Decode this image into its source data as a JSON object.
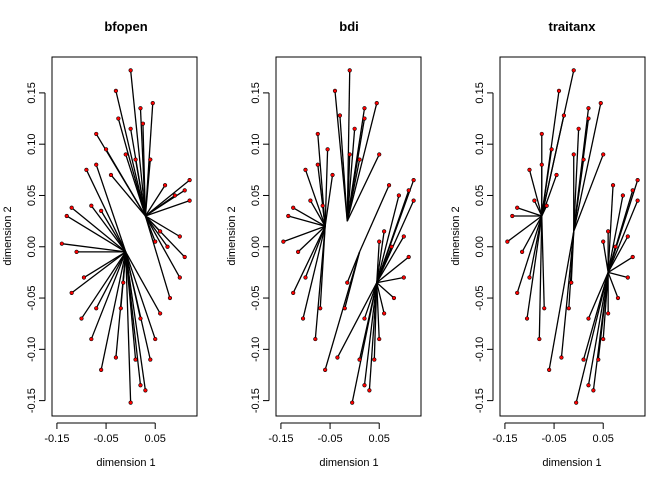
{
  "chart_data": [
    {
      "type": "scatter",
      "title": "bfopen",
      "xlabel": "dimension 1",
      "ylabel": "dimension 2",
      "xlim": [
        -0.16,
        0.135
      ],
      "ylim": [
        -0.165,
        0.185
      ],
      "xticks": [
        -0.15,
        -0.05,
        0.05
      ],
      "xtick_labels": [
        "-0.15",
        "-0.05",
        "0.05"
      ],
      "yticks": [
        -0.15,
        -0.1,
        -0.05,
        0.0,
        0.05,
        0.1,
        0.15
      ],
      "ytick_labels": [
        "-0.15",
        "-0.10",
        "-0.05",
        "0.00",
        "0.05",
        "0.10",
        "0.15"
      ],
      "point_color": "#ff0000",
      "line_color": "#000000",
      "hubs": [
        [
          -0.01,
          -0.005
        ],
        [
          0.03,
          0.03
        ]
      ],
      "points": [
        [
          0.0,
          0.172
        ],
        [
          -0.03,
          0.152
        ],
        [
          -0.025,
          0.125
        ],
        [
          0.025,
          0.12
        ],
        [
          0.04,
          0.085
        ],
        [
          -0.07,
          0.11
        ],
        [
          -0.07,
          0.08
        ],
        [
          -0.09,
          0.075
        ],
        [
          -0.06,
          0.035
        ],
        [
          -0.08,
          0.04
        ],
        [
          -0.12,
          0.038
        ],
        [
          -0.13,
          0.03
        ],
        [
          -0.14,
          0.003
        ],
        [
          -0.11,
          -0.005
        ],
        [
          -0.095,
          -0.03
        ],
        [
          -0.12,
          -0.045
        ],
        [
          -0.1,
          -0.07
        ],
        [
          -0.08,
          -0.09
        ],
        [
          -0.06,
          -0.12
        ],
        [
          -0.03,
          -0.108
        ],
        [
          0.0,
          -0.152
        ],
        [
          0.01,
          -0.11
        ],
        [
          0.02,
          -0.135
        ],
        [
          0.03,
          -0.14
        ],
        [
          0.05,
          -0.09
        ],
        [
          0.06,
          -0.065
        ],
        [
          0.08,
          -0.05
        ],
        [
          0.1,
          -0.03
        ],
        [
          0.11,
          -0.01
        ],
        [
          0.1,
          0.01
        ],
        [
          0.12,
          0.065
        ],
        [
          0.12,
          0.045
        ],
        [
          0.11,
          0.055
        ],
        [
          0.09,
          0.05
        ],
        [
          0.07,
          0.06
        ],
        [
          0.06,
          0.015
        ],
        [
          0.05,
          0.005
        ],
        [
          0.075,
          0.0
        ],
        [
          0.0,
          0.115
        ],
        [
          -0.01,
          0.09
        ],
        [
          0.02,
          0.135
        ],
        [
          0.045,
          0.14
        ],
        [
          0.01,
          0.085
        ],
        [
          -0.04,
          0.07
        ],
        [
          -0.05,
          0.095
        ],
        [
          -0.02,
          -0.06
        ],
        [
          0.02,
          -0.07
        ],
        [
          -0.07,
          -0.06
        ],
        [
          0.04,
          -0.11
        ],
        [
          -0.015,
          -0.035
        ]
      ]
    },
    {
      "type": "scatter",
      "title": "bdi",
      "xlabel": "dimension 1",
      "ylabel": "dimension 2",
      "xlim": [
        -0.16,
        0.135
      ],
      "ylim": [
        -0.165,
        0.185
      ],
      "xticks": [
        -0.15,
        -0.05,
        0.05
      ],
      "xtick_labels": [
        "-0.15",
        "-0.05",
        "0.05"
      ],
      "yticks": [
        -0.15,
        -0.1,
        -0.05,
        0.0,
        0.05,
        0.1,
        0.15
      ],
      "ytick_labels": [
        "-0.15",
        "-0.10",
        "-0.05",
        "0.00",
        "0.05",
        "0.10",
        "0.15"
      ],
      "point_color": "#ff0000",
      "line_color": "#000000",
      "hubs": [
        [
          -0.06,
          0.02
        ],
        [
          -0.015,
          0.025
        ],
        [
          0.01,
          -0.005
        ],
        [
          0.045,
          -0.035
        ]
      ],
      "points": [
        [
          -0.01,
          0.172
        ],
        [
          -0.04,
          0.152
        ],
        [
          -0.03,
          0.128
        ],
        [
          0.02,
          0.125
        ],
        [
          0.05,
          0.09
        ],
        [
          -0.075,
          0.11
        ],
        [
          -0.075,
          0.08
        ],
        [
          -0.1,
          0.075
        ],
        [
          -0.065,
          0.04
        ],
        [
          -0.09,
          0.045
        ],
        [
          -0.125,
          0.038
        ],
        [
          -0.135,
          0.03
        ],
        [
          -0.145,
          0.005
        ],
        [
          -0.115,
          -0.005
        ],
        [
          -0.1,
          -0.03
        ],
        [
          -0.125,
          -0.045
        ],
        [
          -0.105,
          -0.07
        ],
        [
          -0.08,
          -0.09
        ],
        [
          -0.06,
          -0.12
        ],
        [
          -0.035,
          -0.108
        ],
        [
          -0.005,
          -0.152
        ],
        [
          0.01,
          -0.11
        ],
        [
          0.02,
          -0.135
        ],
        [
          0.03,
          -0.14
        ],
        [
          0.05,
          -0.09
        ],
        [
          0.06,
          -0.065
        ],
        [
          0.08,
          -0.05
        ],
        [
          0.1,
          -0.03
        ],
        [
          0.11,
          -0.01
        ],
        [
          0.1,
          0.01
        ],
        [
          0.12,
          0.065
        ],
        [
          0.12,
          0.045
        ],
        [
          0.11,
          0.055
        ],
        [
          0.09,
          0.05
        ],
        [
          0.07,
          0.06
        ],
        [
          0.06,
          0.015
        ],
        [
          0.05,
          0.005
        ],
        [
          0.075,
          0.0
        ],
        [
          0.0,
          0.115
        ],
        [
          -0.01,
          0.09
        ],
        [
          0.02,
          0.135
        ],
        [
          0.045,
          0.14
        ],
        [
          0.01,
          0.085
        ],
        [
          -0.045,
          0.07
        ],
        [
          -0.055,
          0.095
        ],
        [
          -0.02,
          -0.06
        ],
        [
          0.02,
          -0.07
        ],
        [
          -0.07,
          -0.06
        ],
        [
          0.04,
          -0.11
        ],
        [
          -0.015,
          -0.035
        ]
      ]
    },
    {
      "type": "scatter",
      "title": "traitanx",
      "xlabel": "dimension 1",
      "ylabel": "dimension 2",
      "xlim": [
        -0.16,
        0.135
      ],
      "ylim": [
        -0.165,
        0.185
      ],
      "xticks": [
        -0.15,
        -0.05,
        0.05
      ],
      "xtick_labels": [
        "-0.15",
        "-0.05",
        "0.05"
      ],
      "yticks": [
        -0.15,
        -0.1,
        -0.05,
        0.0,
        0.05,
        0.1,
        0.15
      ],
      "ytick_labels": [
        "-0.15",
        "-0.10",
        "-0.05",
        "0.00",
        "0.05",
        "0.10",
        "0.15"
      ],
      "point_color": "#ff0000",
      "line_color": "#000000",
      "hubs": [
        [
          -0.075,
          0.03
        ],
        [
          -0.01,
          0.015
        ],
        [
          0.06,
          -0.025
        ]
      ],
      "points": [
        [
          -0.01,
          0.172
        ],
        [
          -0.04,
          0.152
        ],
        [
          -0.03,
          0.128
        ],
        [
          0.02,
          0.125
        ],
        [
          0.05,
          0.09
        ],
        [
          -0.075,
          0.11
        ],
        [
          -0.075,
          0.08
        ],
        [
          -0.1,
          0.075
        ],
        [
          -0.065,
          0.04
        ],
        [
          -0.09,
          0.045
        ],
        [
          -0.125,
          0.038
        ],
        [
          -0.135,
          0.03
        ],
        [
          -0.145,
          0.005
        ],
        [
          -0.115,
          -0.005
        ],
        [
          -0.1,
          -0.03
        ],
        [
          -0.125,
          -0.045
        ],
        [
          -0.105,
          -0.07
        ],
        [
          -0.08,
          -0.09
        ],
        [
          -0.06,
          -0.12
        ],
        [
          -0.035,
          -0.108
        ],
        [
          -0.005,
          -0.152
        ],
        [
          0.01,
          -0.11
        ],
        [
          0.02,
          -0.135
        ],
        [
          0.03,
          -0.14
        ],
        [
          0.05,
          -0.09
        ],
        [
          0.06,
          -0.065
        ],
        [
          0.08,
          -0.05
        ],
        [
          0.1,
          -0.03
        ],
        [
          0.11,
          -0.01
        ],
        [
          0.1,
          0.01
        ],
        [
          0.12,
          0.065
        ],
        [
          0.12,
          0.045
        ],
        [
          0.11,
          0.055
        ],
        [
          0.09,
          0.05
        ],
        [
          0.07,
          0.06
        ],
        [
          0.06,
          0.015
        ],
        [
          0.05,
          0.005
        ],
        [
          0.075,
          0.0
        ],
        [
          0.0,
          0.115
        ],
        [
          -0.01,
          0.09
        ],
        [
          0.02,
          0.135
        ],
        [
          0.045,
          0.14
        ],
        [
          0.01,
          0.085
        ],
        [
          -0.045,
          0.07
        ],
        [
          -0.055,
          0.095
        ],
        [
          -0.02,
          -0.06
        ],
        [
          0.02,
          -0.07
        ],
        [
          -0.07,
          -0.06
        ],
        [
          0.04,
          -0.11
        ],
        [
          -0.015,
          -0.035
        ]
      ]
    }
  ]
}
